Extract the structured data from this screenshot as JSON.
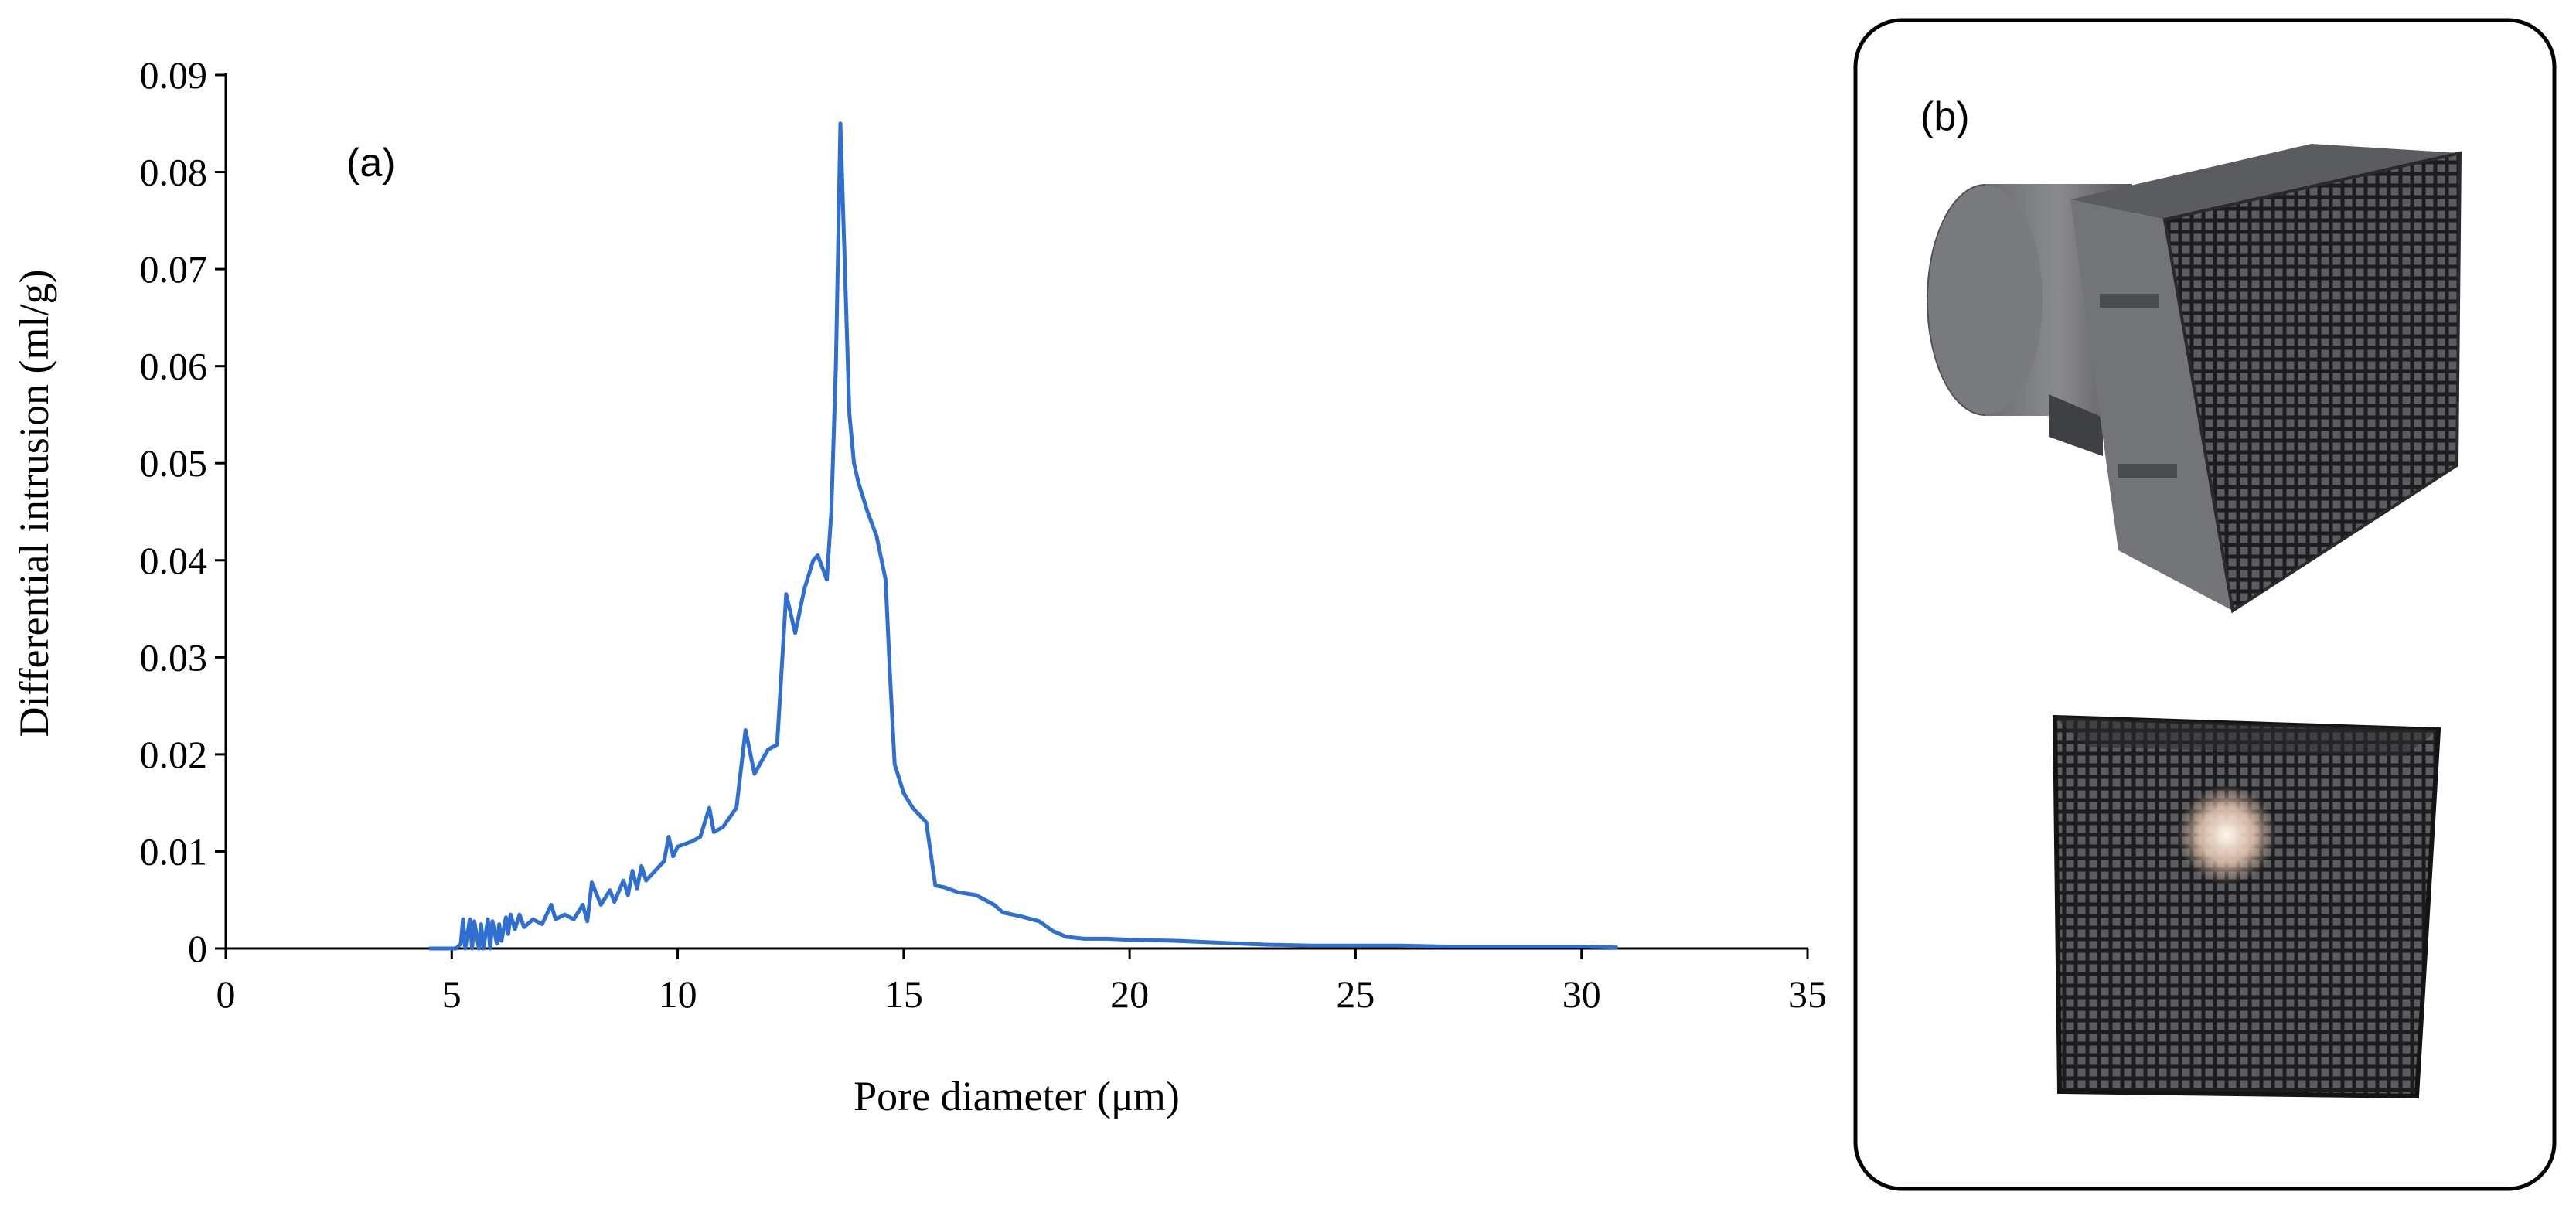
{
  "chart_data": {
    "type": "line",
    "xlabel": "Pore diameter (μm)",
    "ylabel": "Differential intrusion (ml/g)",
    "xlim": [
      0,
      35
    ],
    "ylim": [
      0,
      0.09
    ],
    "x_ticks": [
      "0",
      "5",
      "10",
      "15",
      "20",
      "25",
      "30",
      "35"
    ],
    "y_ticks": [
      "0",
      "0.01",
      "0.02",
      "0.03",
      "0.04",
      "0.05",
      "0.06",
      "0.07",
      "0.08",
      "0.09"
    ],
    "grid": false,
    "legend": "none",
    "panel_label": "(a)",
    "series_color": "#2e6fd1",
    "series": [
      {
        "x": [
          4.5,
          5.1,
          5.2,
          5.25,
          5.3,
          5.4,
          5.45,
          5.5,
          5.6,
          5.65,
          5.7,
          5.8,
          5.85,
          5.9,
          6.0,
          6.05,
          6.1,
          6.2,
          6.25,
          6.3,
          6.4,
          6.5,
          6.6,
          6.8,
          7.0,
          7.2,
          7.3,
          7.5,
          7.7,
          7.9,
          8.0,
          8.1,
          8.3,
          8.5,
          8.6,
          8.8,
          8.9,
          9.0,
          9.1,
          9.2,
          9.3,
          9.5,
          9.7,
          9.8,
          9.9,
          10.0,
          10.3,
          10.5,
          10.7,
          10.8,
          11.0,
          11.3,
          11.5,
          11.7,
          12.0,
          12.2,
          12.4,
          12.6,
          12.8,
          13.0,
          13.1,
          13.3,
          13.4,
          13.5,
          13.6,
          13.7,
          13.8,
          13.9,
          14.0,
          14.2,
          14.4,
          14.6,
          14.7,
          14.8,
          15.0,
          15.2,
          15.5,
          15.7,
          15.9,
          16.2,
          16.6,
          17.0,
          17.2,
          17.6,
          18.0,
          18.3,
          18.6,
          19.0,
          19.5,
          20.0,
          21.0,
          22.0,
          23.0,
          24.0,
          25.0,
          26.0,
          27.0,
          28.0,
          29.0,
          30.0,
          30.8
        ],
        "y": [
          0,
          0,
          0.0005,
          0.003,
          0,
          0.003,
          0,
          0.0028,
          0,
          0.0025,
          0,
          0.003,
          0,
          0.0028,
          0.0005,
          0.0025,
          0.0008,
          0.0032,
          0.0015,
          0.0035,
          0.002,
          0.0035,
          0.0022,
          0.003,
          0.0025,
          0.0045,
          0.003,
          0.0035,
          0.003,
          0.0045,
          0.0028,
          0.0068,
          0.0045,
          0.006,
          0.0048,
          0.007,
          0.0055,
          0.008,
          0.0062,
          0.0085,
          0.007,
          0.008,
          0.009,
          0.0115,
          0.0095,
          0.0105,
          0.011,
          0.0115,
          0.0145,
          0.012,
          0.0125,
          0.0145,
          0.0225,
          0.018,
          0.0205,
          0.021,
          0.0365,
          0.0325,
          0.037,
          0.04,
          0.0405,
          0.038,
          0.045,
          0.06,
          0.085,
          0.07,
          0.055,
          0.05,
          0.048,
          0.045,
          0.0425,
          0.038,
          0.028,
          0.019,
          0.016,
          0.0145,
          0.013,
          0.0065,
          0.0063,
          0.0058,
          0.0055,
          0.0045,
          0.0037,
          0.0033,
          0.0028,
          0.0018,
          0.0012,
          0.001,
          0.001,
          0.0009,
          0.0008,
          0.0006,
          0.0004,
          0.0003,
          0.0003,
          0.0003,
          0.0002,
          0.0002,
          0.0002,
          0.0002,
          0.0001
        ]
      }
    ]
  },
  "photo_panel": {
    "label": "(b)"
  }
}
